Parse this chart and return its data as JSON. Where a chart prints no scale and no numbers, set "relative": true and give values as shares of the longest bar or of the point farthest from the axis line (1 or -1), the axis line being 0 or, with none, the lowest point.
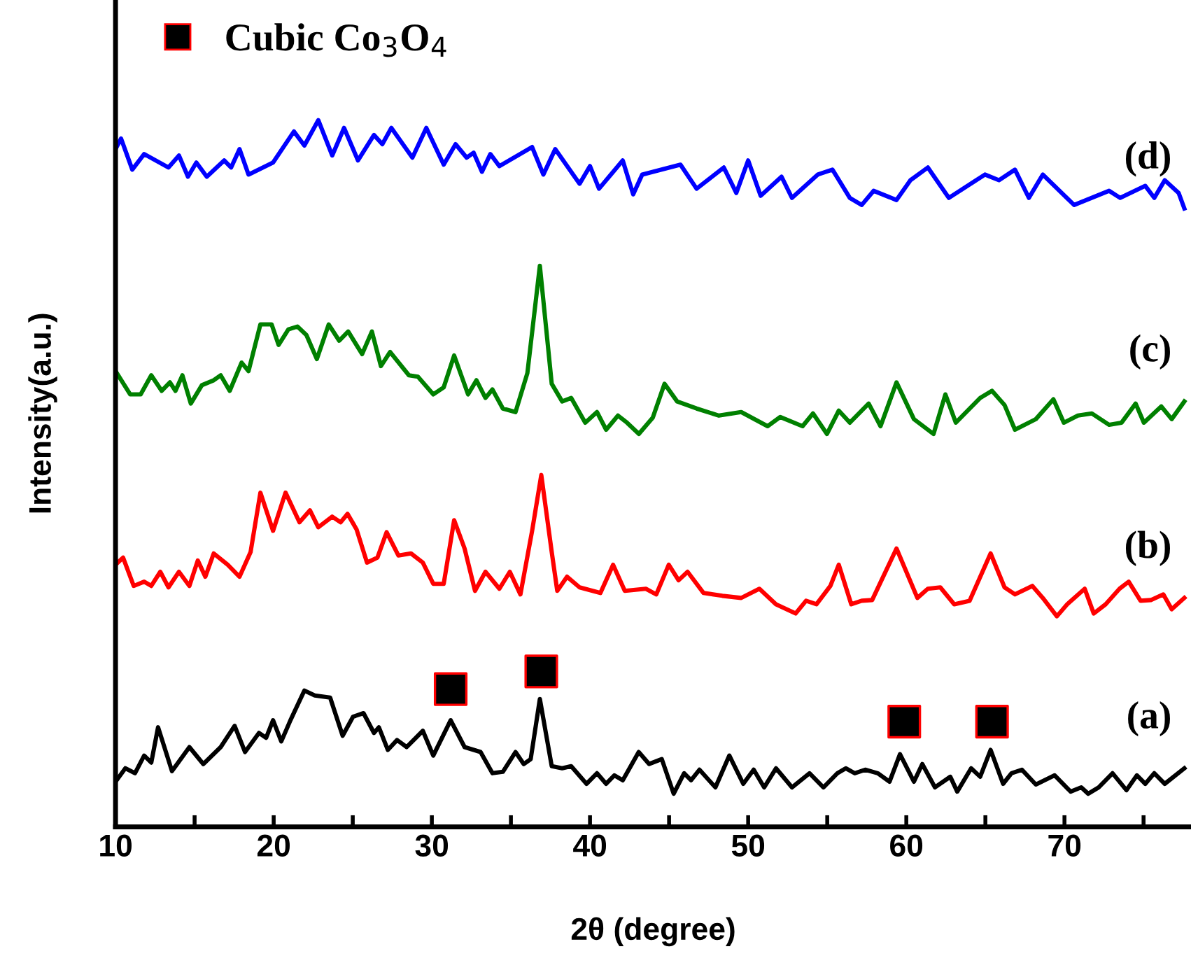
{
  "chart_data": {
    "type": "line",
    "relative": true,
    "xlabel": "2θ (degree)",
    "ylabel": "Intensity(a.u.)",
    "xlim": [
      10,
      78
    ],
    "xticks": [
      10,
      {
        "value": 15,
        "label": null
      },
      20,
      {
        "value": 25,
        "label": null
      },
      30,
      {
        "value": 35,
        "label": null
      },
      40,
      {
        "value": 45,
        "label": null
      },
      50,
      {
        "value": 55,
        "label": null
      },
      60,
      {
        "value": 65,
        "label": null
      },
      70,
      {
        "value": 75,
        "label": null
      }
    ],
    "grid": false,
    "legend": "top left",
    "line_style": "solid",
    "tick_labels": "x",
    "series": [
      {
        "name": "(d)",
        "color": "#0000ff",
        "x": [
          10.0,
          10.35,
          11.06,
          11.81,
          13.35,
          14.01,
          14.58,
          15.11,
          15.77,
          16.87,
          17.31,
          17.84,
          18.41,
          19.96,
          21.28,
          21.94,
          22.82,
          23.7,
          24.45,
          25.33,
          26.34,
          26.87,
          27.44,
          28.77,
          29.65,
          30.75,
          31.5,
          32.2,
          32.64,
          33.17,
          33.7,
          34.27,
          36.34,
          37.05,
          37.8,
          39.34,
          40.0,
          40.57,
          42.07,
          42.73,
          43.3,
          45.72,
          46.74,
          48.46,
          49.25,
          50.0,
          50.79,
          52.11,
          52.77,
          54.4,
          55.33,
          56.43,
          57.18,
          57.93,
          59.38,
          60.26,
          61.36,
          62.69,
          64.97,
          65.86,
          66.87,
          67.75,
          68.63,
          70.61,
          72.82,
          73.52,
          75.11,
          75.68,
          76.34,
          77.22,
          77.58
        ],
        "values": [
          0.959,
          0.974,
          0.93,
          0.952,
          0.933,
          0.95,
          0.92,
          0.94,
          0.92,
          0.943,
          0.933,
          0.959,
          0.923,
          0.94,
          0.984,
          0.964,
          1.0,
          0.95,
          0.989,
          0.943,
          0.979,
          0.966,
          0.989,
          0.947,
          0.989,
          0.937,
          0.966,
          0.947,
          0.954,
          0.927,
          0.952,
          0.935,
          0.962,
          0.923,
          0.959,
          0.91,
          0.935,
          0.903,
          0.943,
          0.895,
          0.923,
          0.937,
          0.903,
          0.933,
          0.897,
          0.943,
          0.893,
          0.92,
          0.89,
          0.923,
          0.93,
          0.89,
          0.88,
          0.9,
          0.887,
          0.915,
          0.933,
          0.89,
          0.923,
          0.915,
          0.93,
          0.89,
          0.923,
          0.88,
          0.9,
          0.89,
          0.907,
          0.89,
          0.915,
          0.897,
          0.875
        ]
      },
      {
        "name": "(c)",
        "color": "#008000",
        "x": [
          10.0,
          10.93,
          11.59,
          12.26,
          12.92,
          13.44,
          13.79,
          14.23,
          14.76,
          15.46,
          16.21,
          16.65,
          17.22,
          17.97,
          18.41,
          19.16,
          19.87,
          20.31,
          20.93,
          21.5,
          22.07,
          22.73,
          23.48,
          24.14,
          24.71,
          25.59,
          26.21,
          26.78,
          27.36,
          28.55,
          29.12,
          30.09,
          30.75,
          31.41,
          32.29,
          32.82,
          33.39,
          33.83,
          34.49,
          35.29,
          36.04,
          36.83,
          37.58,
          38.24,
          38.81,
          39.7,
          40.44,
          41.02,
          41.77,
          42.34,
          43.09,
          43.97,
          44.71,
          45.51,
          46.74,
          48.15,
          49.56,
          51.23,
          52.03,
          53.44,
          54.1,
          54.98,
          55.73,
          56.43,
          57.62,
          58.37,
          59.38,
          60.48,
          61.72,
          62.47,
          63.13,
          64.67,
          65.42,
          66.21,
          66.87,
          68.19,
          69.3,
          69.96,
          70.85,
          71.73,
          72.82,
          73.61,
          74.5,
          75.02,
          76.12,
          76.78,
          77.58
        ],
        "values": [
          0.645,
          0.612,
          0.612,
          0.639,
          0.617,
          0.629,
          0.617,
          0.639,
          0.599,
          0.625,
          0.632,
          0.639,
          0.617,
          0.657,
          0.645,
          0.711,
          0.711,
          0.682,
          0.704,
          0.708,
          0.696,
          0.662,
          0.711,
          0.688,
          0.701,
          0.669,
          0.701,
          0.652,
          0.672,
          0.639,
          0.637,
          0.612,
          0.622,
          0.667,
          0.612,
          0.632,
          0.607,
          0.619,
          0.592,
          0.587,
          0.642,
          0.794,
          0.627,
          0.602,
          0.607,
          0.572,
          0.587,
          0.562,
          0.582,
          0.572,
          0.556,
          0.579,
          0.627,
          0.602,
          0.592,
          0.582,
          0.587,
          0.567,
          0.58,
          0.567,
          0.585,
          0.556,
          0.589,
          0.572,
          0.599,
          0.567,
          0.629,
          0.577,
          0.556,
          0.612,
          0.572,
          0.607,
          0.617,
          0.597,
          0.562,
          0.577,
          0.605,
          0.572,
          0.582,
          0.585,
          0.569,
          0.572,
          0.599,
          0.572,
          0.595,
          0.577,
          0.602
        ]
      },
      {
        "name": "(b)",
        "color": "#ff0000",
        "x": [
          10.0,
          10.48,
          11.15,
          11.81,
          12.26,
          12.83,
          13.35,
          14.01,
          14.67,
          15.2,
          15.68,
          16.21,
          17.09,
          17.84,
          18.54,
          19.16,
          19.96,
          20.75,
          21.63,
          22.29,
          22.82,
          23.7,
          24.23,
          24.67,
          25.24,
          25.9,
          26.56,
          27.14,
          27.89,
          28.68,
          29.43,
          30.09,
          30.75,
          31.41,
          32.07,
          32.73,
          33.39,
          34.27,
          34.93,
          35.6,
          36.34,
          36.92,
          37.58,
          37.93,
          38.55,
          39.34,
          40.66,
          41.46,
          42.2,
          43.53,
          44.19,
          44.98,
          45.6,
          46.17,
          47.18,
          48.37,
          49.56,
          50.71,
          51.76,
          53.0,
          53.66,
          54.32,
          55.2,
          55.73,
          56.52,
          57.18,
          57.84,
          59.38,
          60.7,
          61.36,
          62.15,
          63.03,
          64.0,
          65.33,
          66.21,
          66.87,
          67.97,
          68.63,
          69.52,
          70.17,
          71.28,
          71.85,
          72.6,
          73.48,
          74.06,
          74.81,
          75.46,
          76.25,
          76.78,
          77.58
        ],
        "values": [
          0.371,
          0.381,
          0.341,
          0.347,
          0.341,
          0.361,
          0.339,
          0.361,
          0.341,
          0.377,
          0.354,
          0.387,
          0.371,
          0.354,
          0.389,
          0.473,
          0.419,
          0.473,
          0.431,
          0.448,
          0.424,
          0.439,
          0.431,
          0.443,
          0.421,
          0.374,
          0.381,
          0.417,
          0.384,
          0.387,
          0.374,
          0.344,
          0.344,
          0.434,
          0.394,
          0.334,
          0.361,
          0.337,
          0.361,
          0.329,
          0.419,
          0.498,
          0.389,
          0.334,
          0.354,
          0.339,
          0.331,
          0.371,
          0.334,
          0.337,
          0.329,
          0.371,
          0.349,
          0.361,
          0.331,
          0.327,
          0.324,
          0.337,
          0.315,
          0.302,
          0.32,
          0.315,
          0.341,
          0.371,
          0.315,
          0.32,
          0.321,
          0.394,
          0.324,
          0.337,
          0.339,
          0.315,
          0.32,
          0.387,
          0.339,
          0.329,
          0.341,
          0.324,
          0.298,
          0.315,
          0.337,
          0.302,
          0.315,
          0.337,
          0.347,
          0.32,
          0.321,
          0.329,
          0.308,
          0.324
        ]
      },
      {
        "name": "(a)",
        "color": "#000000",
        "x": [
          10.0,
          10.62,
          11.23,
          11.81,
          12.26,
          12.69,
          13.57,
          14.67,
          15.55,
          16.65,
          17.53,
          18.19,
          19.07,
          19.52,
          19.96,
          20.48,
          21.06,
          21.94,
          22.6,
          23.57,
          24.36,
          25.02,
          25.68,
          26.34,
          26.65,
          27.22,
          27.8,
          28.41,
          29.43,
          30.09,
          31.19,
          32.07,
          33.08,
          33.83,
          34.49,
          35.29,
          35.81,
          36.25,
          36.83,
          37.58,
          38.24,
          38.81,
          39.78,
          40.44,
          41.02,
          41.54,
          42.07,
          43.08,
          43.74,
          44.54,
          45.29,
          45.95,
          46.39,
          46.92,
          47.93,
          48.81,
          49.69,
          50.35,
          51.01,
          51.76,
          52.77,
          53.88,
          54.76,
          55.64,
          56.17,
          56.74,
          57.4,
          58.19,
          58.94,
          59.6,
          60.48,
          61.01,
          61.81,
          62.78,
          63.22,
          64.1,
          64.67,
          65.33,
          66.12,
          66.65,
          67.31,
          68.19,
          69.38,
          70.39,
          71.06,
          71.5,
          72.16,
          73.04,
          73.92,
          74.58,
          75.11,
          75.68,
          76.34,
          77.58
        ],
        "values": [
          0.064,
          0.083,
          0.076,
          0.101,
          0.091,
          0.141,
          0.079,
          0.113,
          0.089,
          0.113,
          0.143,
          0.106,
          0.133,
          0.126,
          0.151,
          0.121,
          0.151,
          0.193,
          0.186,
          0.183,
          0.129,
          0.156,
          0.161,
          0.133,
          0.141,
          0.109,
          0.123,
          0.113,
          0.136,
          0.101,
          0.151,
          0.113,
          0.106,
          0.076,
          0.078,
          0.106,
          0.089,
          0.096,
          0.181,
          0.086,
          0.083,
          0.086,
          0.061,
          0.076,
          0.061,
          0.073,
          0.066,
          0.106,
          0.089,
          0.096,
          0.047,
          0.076,
          0.066,
          0.081,
          0.056,
          0.101,
          0.061,
          0.081,
          0.056,
          0.083,
          0.056,
          0.076,
          0.056,
          0.076,
          0.083,
          0.076,
          0.081,
          0.076,
          0.064,
          0.103,
          0.064,
          0.089,
          0.056,
          0.071,
          0.05,
          0.083,
          0.071,
          0.109,
          0.061,
          0.076,
          0.081,
          0.06,
          0.073,
          0.05,
          0.056,
          0.047,
          0.056,
          0.076,
          0.052,
          0.073,
          0.061,
          0.076,
          0.061,
          0.083
        ]
      },
      {
        "name": "Cubic Co$_{3}$O$_{4}$",
        "type": "scatter",
        "marker": "square",
        "color": "#000000",
        "x": [
          31.19,
          36.92,
          59.87,
          65.42
        ],
        "values": [
          0.195,
          0.22,
          0.149,
          0.149
        ]
      }
    ]
  }
}
